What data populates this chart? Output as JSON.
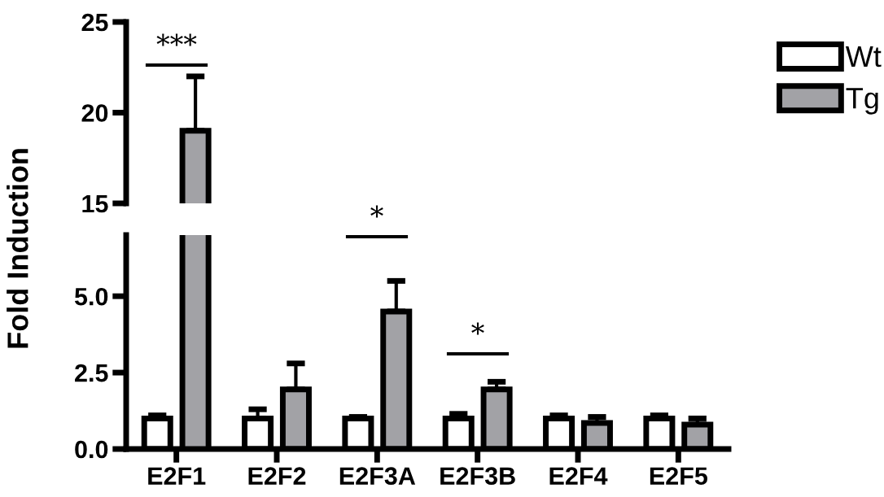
{
  "chart_data": [
    {
      "type": "bar",
      "categories": [
        "E2F1",
        "E2F2",
        "E2F3A",
        "E2F3B",
        "E2F4",
        "E2F5"
      ],
      "ylim": [
        15,
        25
      ],
      "yticks": [
        15,
        20,
        25
      ],
      "tick_labels": "y",
      "grid": false,
      "legend": false,
      "series": [
        {
          "color": "#a2a2a6",
          "values": [
            19.0,
            null,
            null,
            null,
            null,
            null
          ],
          "errors": [
            [
              19.0,
              22.0
            ],
            null,
            null,
            null,
            null,
            null
          ]
        }
      ],
      "annotations": [
        "***"
      ]
    },
    {
      "type": "bar",
      "categories": [
        "E2F1",
        "E2F2",
        "E2F3A",
        "E2F3B",
        "E2F4",
        "E2F5"
      ],
      "ylabel": "Fold Induction",
      "ylim": [
        0,
        7
      ],
      "yticks": [
        {
          "value": 0,
          "label": "0.0"
        },
        {
          "value": 2.5,
          "label": "2.5"
        },
        {
          "value": 5,
          "label": "5.0"
        }
      ],
      "grid": false,
      "legend": "top right",
      "series": [
        {
          "name": "Wt",
          "color": "#ffffff",
          "values": [
            1.0,
            1.0,
            1.0,
            1.0,
            1.0,
            1.0
          ],
          "errors": [
            [
              1.0,
              1.1
            ],
            [
              1.0,
              1.3
            ],
            [
              1.0,
              1.05
            ],
            [
              1.0,
              1.15
            ],
            [
              1.0,
              1.1
            ],
            [
              1.0,
              1.1
            ]
          ]
        },
        {
          "name": "Tg",
          "color": "#a2a2a6",
          "values": [
            null,
            1.95,
            4.5,
            1.95,
            0.85,
            0.8
          ],
          "errors": [
            null,
            [
              1.95,
              2.8
            ],
            [
              4.5,
              5.5
            ],
            [
              1.95,
              2.2
            ],
            [
              0.85,
              1.05
            ],
            [
              0.8,
              1.0
            ]
          ]
        }
      ],
      "annotations": [
        "*",
        "*"
      ]
    }
  ]
}
